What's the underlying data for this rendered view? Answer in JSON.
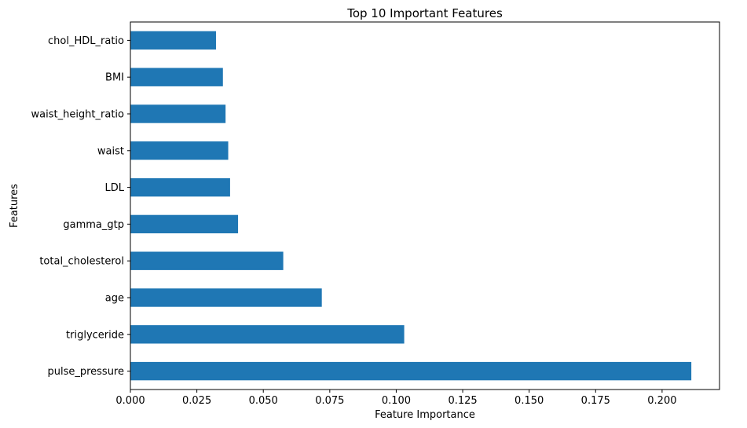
{
  "chart_data": {
    "type": "bar",
    "orientation": "horizontal",
    "title": "Top 10 Important Features",
    "xlabel": "Feature Importance",
    "ylabel": "Features",
    "categories": [
      "pulse_pressure",
      "triglyceride",
      "age",
      "total_cholesterol",
      "gamma_gtp",
      "LDL",
      "waist",
      "waist_height_ratio",
      "BMI",
      "chol_HDL_ratio"
    ],
    "values": [
      0.211,
      0.103,
      0.072,
      0.0575,
      0.0405,
      0.0375,
      0.0368,
      0.0358,
      0.0348,
      0.0322
    ],
    "xlim": [
      0,
      0.2216
    ],
    "xticks": [
      0.0,
      0.025,
      0.05,
      0.075,
      0.1,
      0.125,
      0.15,
      0.175,
      0.2
    ],
    "xtick_labels": [
      "0.000",
      "0.025",
      "0.050",
      "0.075",
      "0.100",
      "0.125",
      "0.150",
      "0.175",
      "0.200"
    ],
    "grid": false,
    "legend": "none",
    "bar_color": "#1f77b4"
  }
}
